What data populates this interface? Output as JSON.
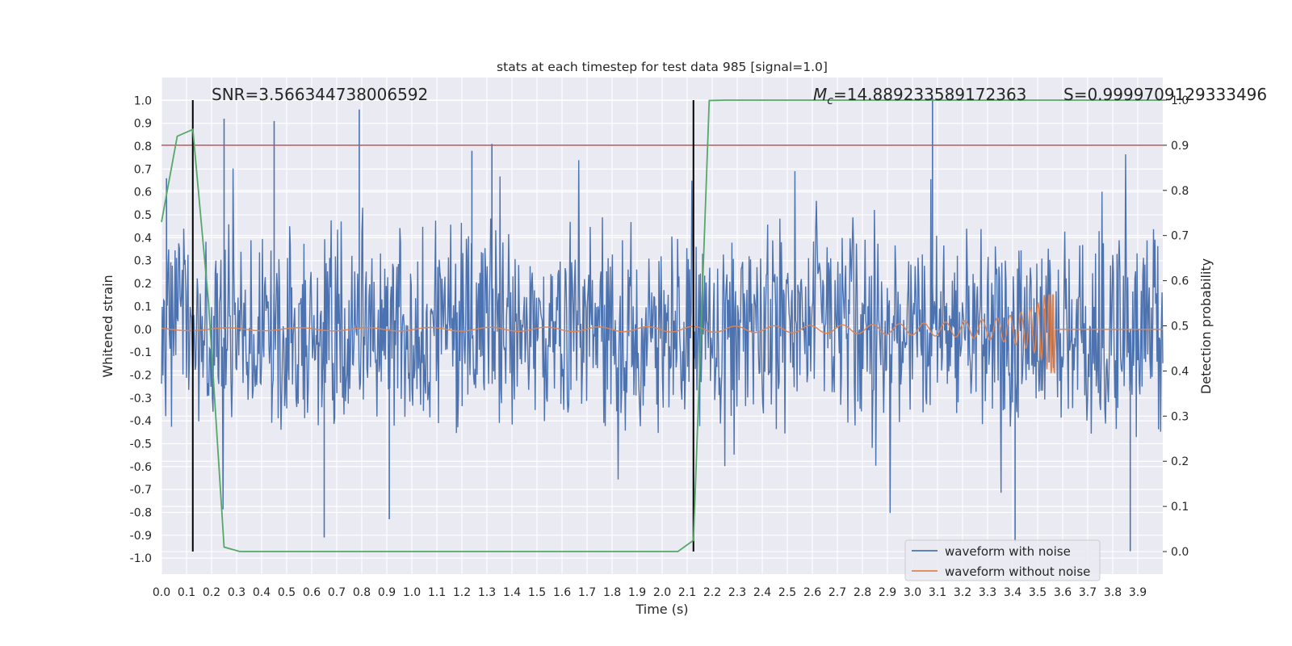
{
  "chart_data": {
    "type": "line",
    "title": "stats at each timestep for test data 985 [signal=1.0]",
    "xlabel": "Time (s)",
    "ylabel": "Whitened strain",
    "ylabel_right": "Detection probability",
    "xlim": [
      0.0,
      4.0
    ],
    "ylim": [
      -1.07,
      1.1
    ],
    "ylim_right": [
      -0.05,
      1.05
    ],
    "x_ticks": [
      "0.0",
      "0.1",
      "0.2",
      "0.3",
      "0.4",
      "0.5",
      "0.6",
      "0.7",
      "0.8",
      "0.9",
      "1.0",
      "1.1",
      "1.2",
      "1.3",
      "1.4",
      "1.5",
      "1.6",
      "1.7",
      "1.8",
      "1.9",
      "2.0",
      "2.1",
      "2.2",
      "2.3",
      "2.4",
      "2.5",
      "2.6",
      "2.7",
      "2.8",
      "2.9",
      "3.0",
      "3.1",
      "3.2",
      "3.3",
      "3.4",
      "3.5",
      "3.6",
      "3.7",
      "3.8",
      "3.9"
    ],
    "y_ticks": [
      "1.0",
      "0.9",
      "0.8",
      "0.7",
      "0.6",
      "0.5",
      "0.4",
      "0.3",
      "0.2",
      "0.1",
      "0.0",
      "-0.1",
      "-0.2",
      "-0.3",
      "-0.4",
      "-0.5",
      "-0.6",
      "-0.7",
      "-0.8",
      "-0.9",
      "-1.0"
    ],
    "y_right_ticks": [
      "1.0",
      "0.9",
      "0.8",
      "0.7",
      "0.6",
      "0.5",
      "0.4",
      "0.3",
      "0.2",
      "0.1",
      "0.0"
    ],
    "annotations": {
      "snr": "SNR=3.566344738006592",
      "mc": "M",
      "mc_sub": "c",
      "mc_value": "=14.889233589172363",
      "s": "S=0.9999709129333496"
    },
    "legend": {
      "placement": "lower-right",
      "entries": [
        "waveform with noise",
        "waveform without noise"
      ]
    },
    "threshold": {
      "value_right": 0.9,
      "color": "#c44e52"
    },
    "vlines": [
      0.125,
      2.125
    ],
    "colors": {
      "noise": "#4c72b0",
      "clean": "#dd8452",
      "prob": "#55a868",
      "vline": "#000000"
    },
    "series": [
      {
        "name": "Detection probability",
        "axis": "right",
        "x": [
          0.0,
          0.063,
          0.125,
          0.188,
          0.25,
          0.313,
          0.375,
          0.5,
          0.625,
          0.75,
          0.875,
          1.0,
          1.25,
          1.5,
          1.75,
          2.0,
          2.063,
          2.125,
          2.188,
          2.25,
          2.5,
          2.75,
          3.0,
          3.25,
          3.5,
          3.75,
          4.0
        ],
        "values": [
          0.73,
          0.92,
          0.935,
          0.55,
          0.01,
          0.0,
          0.0,
          0.0,
          0.0,
          0.0,
          0.0,
          0.0,
          0.0,
          0.0,
          0.0,
          0.0,
          0.0,
          0.025,
          0.999,
          1.0,
          1.0,
          1.0,
          1.0,
          1.0,
          1.0,
          1.0,
          1.0
        ]
      },
      {
        "name": "waveform with noise",
        "axis": "left",
        "description_range": [
          -1.0,
          1.0
        ],
        "peaks": [
          {
            "t": 0.02,
            "v": 0.66
          },
          {
            "t": 0.25,
            "v": 0.92
          },
          {
            "t": 0.45,
            "v": 0.91
          },
          {
            "t": 0.79,
            "v": 0.96
          },
          {
            "t": 1.24,
            "v": 0.78
          },
          {
            "t": 1.32,
            "v": 0.81
          },
          {
            "t": 3.08,
            "v": 1.01
          },
          {
            "t": 0.65,
            "v": -0.91
          },
          {
            "t": 0.91,
            "v": -0.83
          },
          {
            "t": 3.41,
            "v": -0.93
          },
          {
            "t": 3.87,
            "v": -0.97
          }
        ]
      },
      {
        "name": "waveform without noise",
        "axis": "left",
        "merger_time": 3.57,
        "peak_amplitude": 0.15,
        "min_amplitude": -0.19
      }
    ]
  }
}
